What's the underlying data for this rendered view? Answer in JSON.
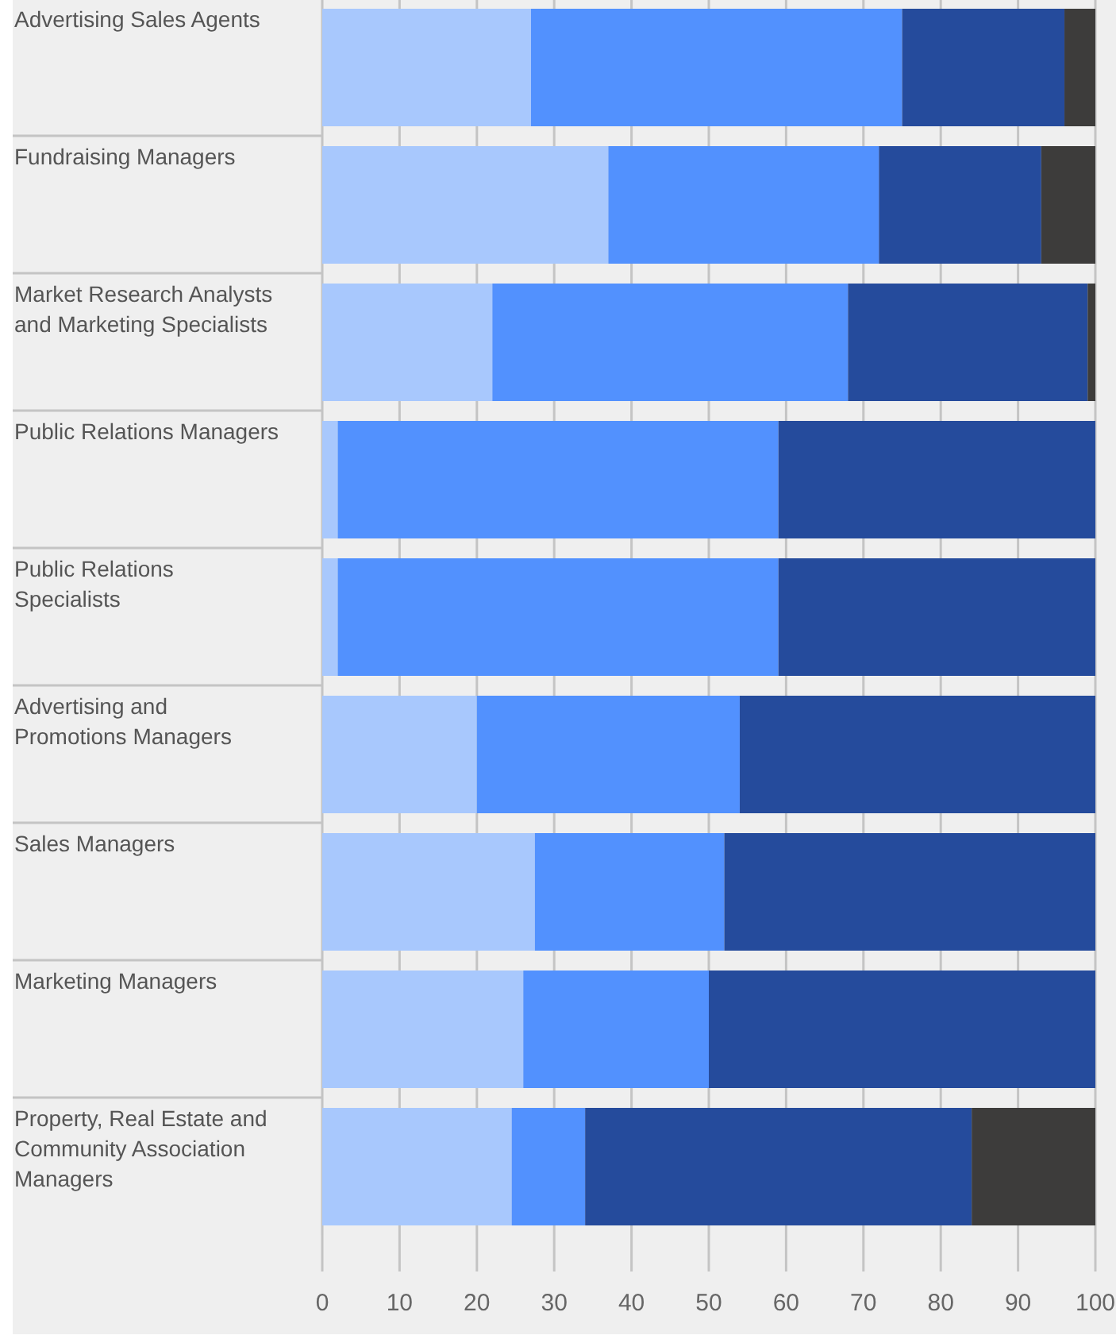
{
  "chart_data": {
    "type": "bar",
    "orientation": "horizontal",
    "stacked": true,
    "categories": [
      "Advertising Sales Agents",
      "Fundraising Managers",
      "Market Research Analysts and Marketing Specialists",
      "Public Relations Managers",
      "Public Relations Specialists",
      "Advertising and Promotions Managers",
      "Sales Managers",
      "Marketing Managers",
      "Property, Real Estate and Community Association Managers"
    ],
    "series": [
      {
        "color": "#a8c8fd",
        "values": [
          27,
          37,
          22,
          2,
          2,
          20,
          27.5,
          26,
          24.5
        ]
      },
      {
        "color": "#5291fe",
        "values": [
          48,
          35,
          46,
          57,
          57,
          34,
          24.5,
          24,
          9.5
        ]
      },
      {
        "color": "#254b9c",
        "values": [
          21,
          21,
          31,
          41,
          41,
          46,
          48,
          50,
          50
        ]
      },
      {
        "color": "#3d3c3b",
        "values": [
          4,
          7,
          1,
          0,
          0,
          0,
          0,
          0,
          16
        ]
      }
    ],
    "xlim": [
      0,
      100
    ],
    "xticks": [
      0,
      10,
      20,
      30,
      40,
      50,
      60,
      70,
      80,
      90,
      100
    ],
    "grid": "x",
    "legend": false
  }
}
